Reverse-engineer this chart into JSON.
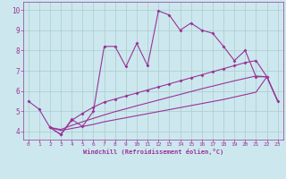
{
  "xlabel": "Windchill (Refroidissement éolien,°C)",
  "bg_color": "#cce8ee",
  "line_color": "#993399",
  "grid_color": "#aacccc",
  "xlim": [
    -0.5,
    23.5
  ],
  "ylim": [
    3.6,
    10.4
  ],
  "xticks": [
    0,
    1,
    2,
    3,
    4,
    5,
    6,
    7,
    8,
    9,
    10,
    11,
    12,
    13,
    14,
    15,
    16,
    17,
    18,
    19,
    20,
    21,
    22,
    23
  ],
  "yticks": [
    4,
    5,
    6,
    7,
    8,
    9,
    10
  ],
  "line1_x": [
    0,
    1,
    2,
    3,
    4,
    5,
    6,
    7,
    8,
    9,
    10,
    11,
    12,
    13,
    14,
    15,
    16,
    17,
    18,
    19,
    20,
    21,
    22
  ],
  "line1_y": [
    5.5,
    5.1,
    4.2,
    3.85,
    4.6,
    4.25,
    5.0,
    8.2,
    8.2,
    7.2,
    8.35,
    7.25,
    9.95,
    9.75,
    9.0,
    9.35,
    9.0,
    8.85,
    8.2,
    7.5,
    8.0,
    6.7,
    6.7
  ],
  "line2_x": [
    2,
    3,
    4,
    5,
    6,
    7,
    8,
    9,
    10,
    11,
    12,
    13,
    14,
    15,
    16,
    17,
    18,
    19,
    20,
    21,
    22,
    23
  ],
  "line2_y": [
    4.2,
    3.85,
    4.55,
    4.9,
    5.2,
    5.45,
    5.6,
    5.75,
    5.9,
    6.05,
    6.2,
    6.35,
    6.5,
    6.65,
    6.8,
    6.95,
    7.1,
    7.25,
    7.4,
    7.5,
    6.7,
    5.5
  ],
  "line3_x": [
    2,
    3,
    4,
    5,
    6,
    7,
    8,
    9,
    10,
    11,
    12,
    13,
    14,
    15,
    16,
    17,
    18,
    19,
    20,
    21,
    22,
    23
  ],
  "line3_y": [
    4.2,
    4.1,
    4.3,
    4.48,
    4.65,
    4.82,
    4.98,
    5.12,
    5.27,
    5.41,
    5.55,
    5.69,
    5.83,
    5.97,
    6.11,
    6.24,
    6.37,
    6.5,
    6.62,
    6.74,
    6.7,
    5.5
  ],
  "line4_x": [
    2,
    3,
    4,
    5,
    6,
    7,
    8,
    9,
    10,
    11,
    12,
    13,
    14,
    15,
    16,
    17,
    18,
    19,
    20,
    21,
    22,
    23
  ],
  "line4_y": [
    4.2,
    4.05,
    4.15,
    4.25,
    4.35,
    4.48,
    4.58,
    4.68,
    4.78,
    4.88,
    4.98,
    5.08,
    5.18,
    5.28,
    5.38,
    5.48,
    5.58,
    5.7,
    5.82,
    5.94,
    6.7,
    5.5
  ]
}
